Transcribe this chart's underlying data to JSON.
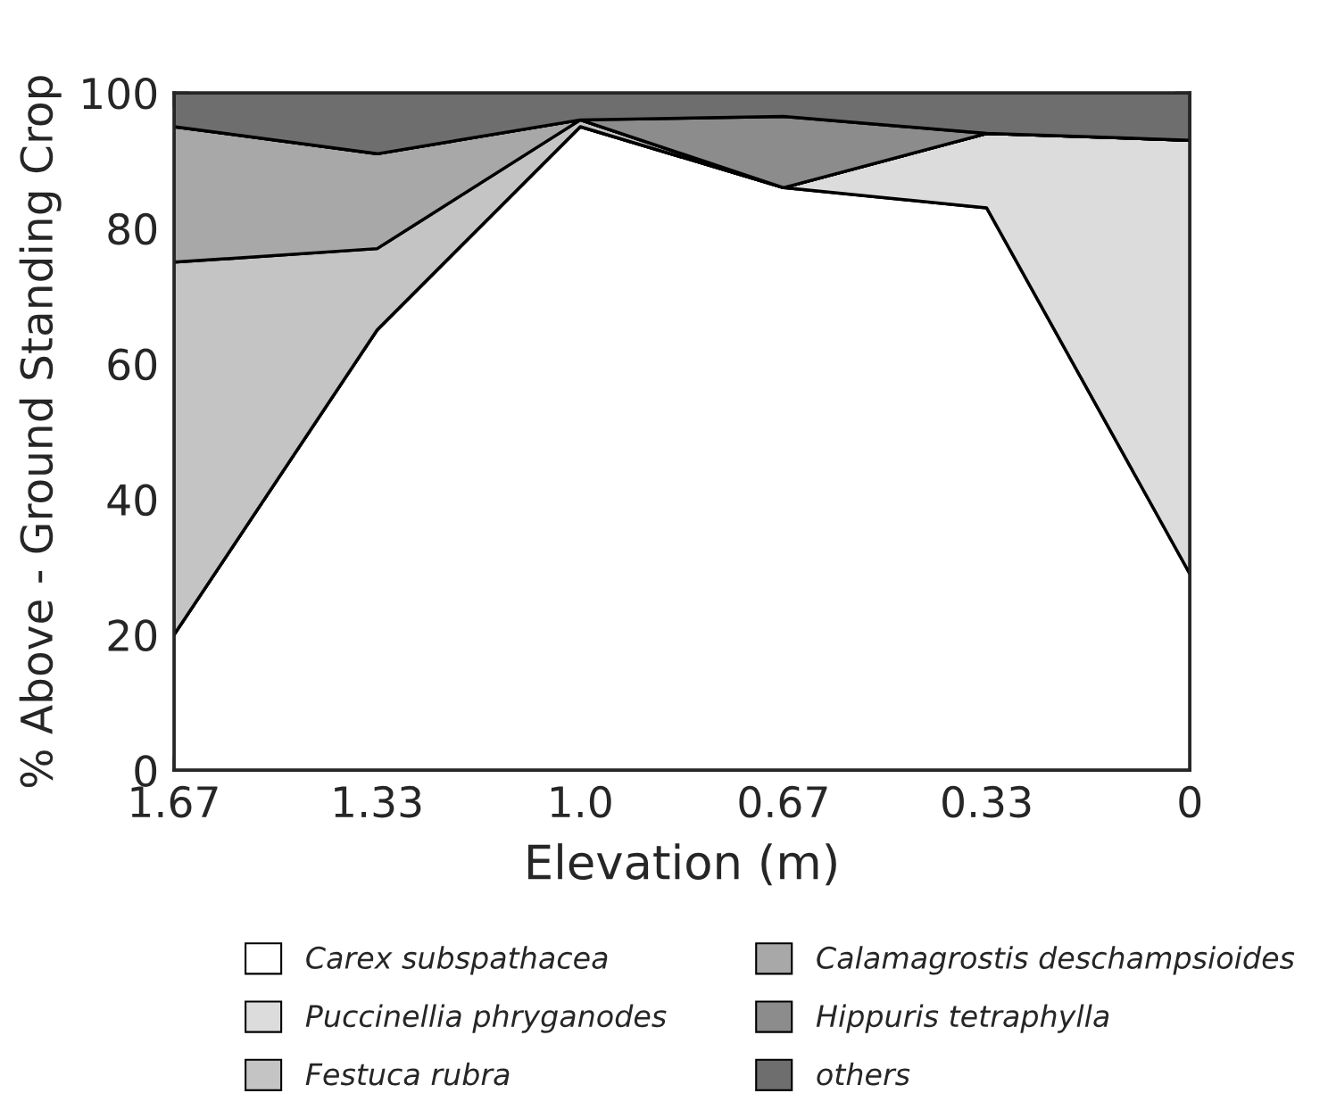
{
  "chart_data": {
    "type": "area",
    "stacked": true,
    "xlabel": "Elevation (m)",
    "ylabel": "% Above - Ground Standing Crop",
    "categories": [
      "1.67",
      "1.33",
      "1.0",
      "0.67",
      "0.33",
      "0"
    ],
    "series": [
      {
        "name": "Carex subspathacea",
        "color": "#ffffff",
        "values": [
          20,
          65,
          95,
          86,
          83,
          29
        ]
      },
      {
        "name": "Puccinellia phryganodes",
        "color": "#dcdcdc",
        "values": [
          0,
          0,
          0,
          0,
          11,
          64
        ]
      },
      {
        "name": "Festuca rubra",
        "color": "#c4c4c4",
        "values": [
          55,
          12,
          1,
          0,
          0,
          0
        ]
      },
      {
        "name": "Calamagrostis deschampsioides",
        "color": "#a8a8a8",
        "values": [
          20,
          14,
          0,
          0,
          0,
          0
        ]
      },
      {
        "name": "Hippuris tetraphylla",
        "color": "#8c8c8c",
        "values": [
          0,
          0,
          0,
          10.5,
          0,
          0
        ]
      },
      {
        "name": "others",
        "color": "#6e6e6e",
        "values": [
          5,
          9,
          4,
          3.5,
          6,
          7
        ]
      }
    ],
    "ylim": [
      0,
      100
    ],
    "yticks": [
      0,
      20,
      40,
      60,
      80,
      100
    ],
    "legend": "bottom"
  }
}
